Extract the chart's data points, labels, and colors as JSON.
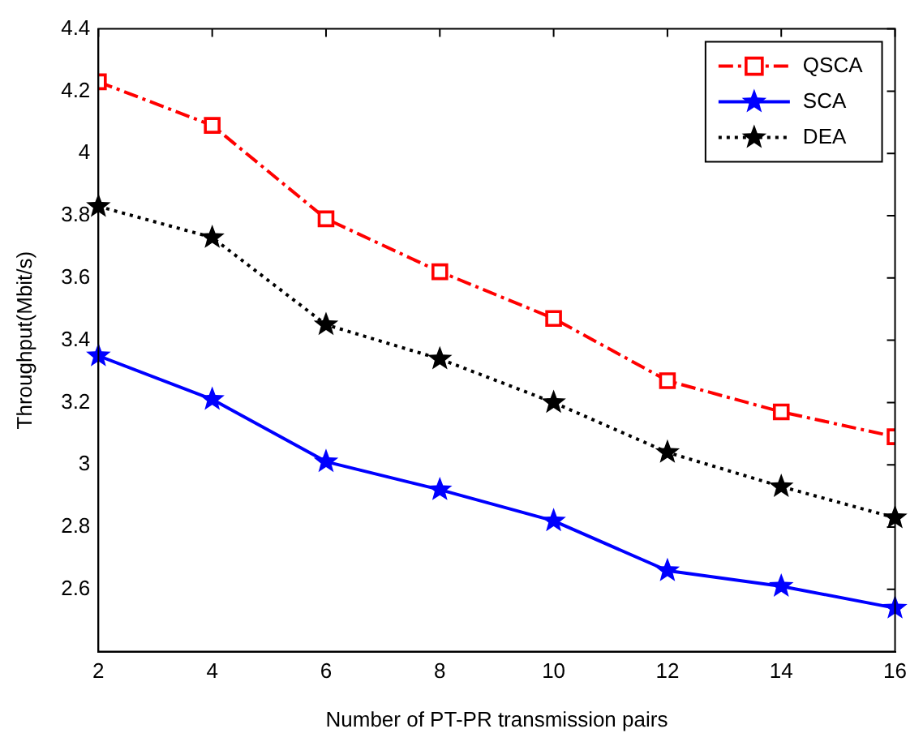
{
  "chart_data": {
    "type": "line",
    "xlabel": "Number of PT-PR transmission pairs",
    "ylabel": "Throughput(Mbit/s)",
    "x": [
      2,
      4,
      6,
      8,
      10,
      12,
      14,
      16
    ],
    "series": [
      {
        "name": "QSCA",
        "color": "#ff0000",
        "marker": "square",
        "line_style": "dashdot",
        "values": [
          4.23,
          4.09,
          3.79,
          3.62,
          3.47,
          3.27,
          3.17,
          3.09
        ]
      },
      {
        "name": "SCA",
        "color": "#0000ff",
        "marker": "star",
        "line_style": "solid",
        "values": [
          3.35,
          3.21,
          3.01,
          2.92,
          2.82,
          2.66,
          2.61,
          2.54
        ]
      },
      {
        "name": "DEA",
        "color": "#000000",
        "marker": "star",
        "line_style": "dotted",
        "values": [
          3.83,
          3.73,
          3.45,
          3.34,
          3.2,
          3.04,
          2.93,
          2.83
        ]
      }
    ],
    "xlim": [
      2,
      16
    ],
    "xticks": [
      2,
      4,
      6,
      8,
      10,
      12,
      14,
      16
    ],
    "ylim": [
      2.4,
      4.4
    ],
    "yticks": [
      2.6,
      2.8,
      3,
      3.2,
      3.4,
      3.6,
      3.8,
      4,
      4.2,
      4.4
    ],
    "grid": false,
    "legend": "top right"
  }
}
